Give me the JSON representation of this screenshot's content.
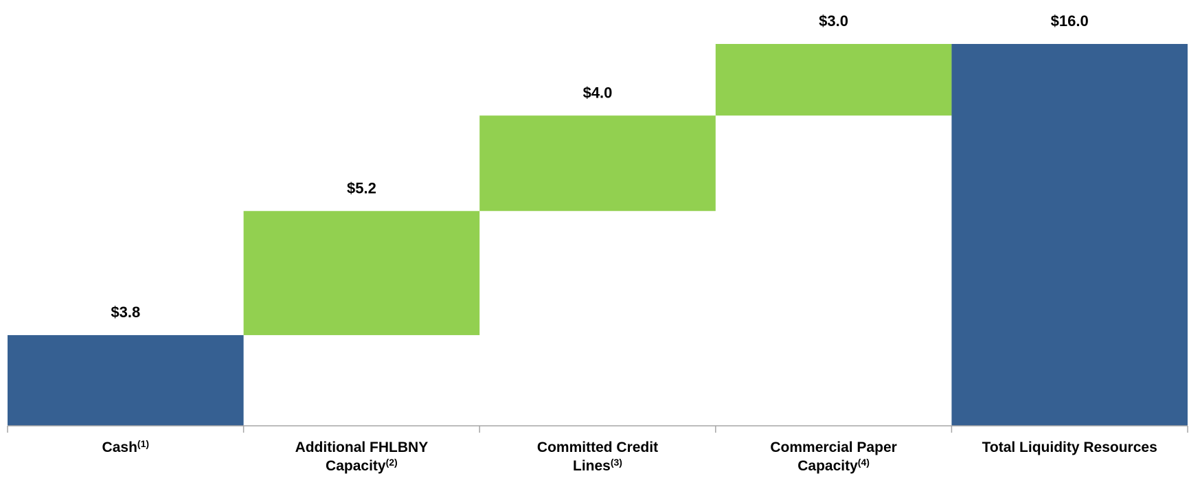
{
  "chart_data": {
    "type": "waterfall",
    "categories": [
      "Cash",
      "Additional FHLBNY Capacity",
      "Committed Credit Lines",
      "Commercial Paper Capacity",
      "Total Liquidity Resources"
    ],
    "category_notes": [
      "(1)",
      "(2)",
      "(3)",
      "(4)",
      null
    ],
    "measures": [
      "absolute",
      "relative",
      "relative",
      "relative",
      "total"
    ],
    "values": [
      3.8,
      5.2,
      4.0,
      3.0,
      16.0
    ],
    "value_labels": [
      "$3.8",
      "$5.2",
      "$4.0",
      "$3.0",
      "$16.0"
    ],
    "colors": {
      "absolute": "#366092",
      "relative": "#92d050",
      "total": "#366092"
    },
    "ylim": [
      0,
      16
    ]
  }
}
